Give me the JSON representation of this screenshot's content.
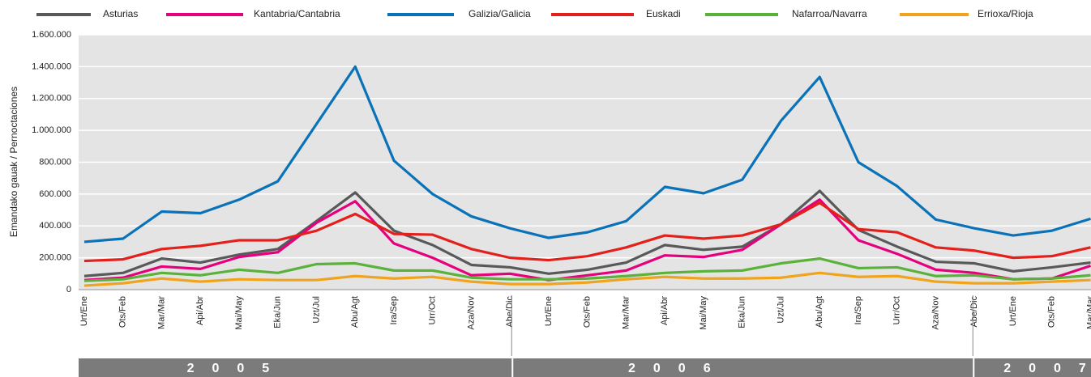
{
  "chart_data": {
    "type": "line",
    "y_label": "Emandako gauak / Pernoctaciones",
    "categories": [
      "Urt/Ene",
      "Ots/Feb",
      "Mar/Mar",
      "Api/Abr",
      "Mai/May",
      "Eka/Jun",
      "Uzt/Jul",
      "Abu/Agt",
      "Ira/Sep",
      "Urr/Oct",
      "Aza/Nov",
      "Abe/Dic",
      "Urt/Ene",
      "Ots/Feb",
      "Mar/Mar",
      "Api/Abr",
      "Mai/May",
      "Eka/Jun",
      "Uzt/Jul",
      "Abu/Agt",
      "Ira/Sep",
      "Urr/Oct",
      "Aza/Nov",
      "Abe/Dic",
      "Urt/Ene",
      "Ots/Feb",
      "Mar/Mar"
    ],
    "years": [
      "2005",
      "2006",
      "2007"
    ],
    "ylim": [
      0,
      1600000
    ],
    "yticks": [
      0,
      {
        "value": 200000,
        "label": "200.000"
      },
      {
        "value": 400000,
        "label": "400.000"
      },
      {
        "value": 600000,
        "label": "600.000"
      },
      {
        "value": 800000,
        "label": "800.000"
      },
      {
        "value": 1000000,
        "label": "1.000.000"
      },
      {
        "value": 1200000,
        "label": "1.200.000"
      },
      {
        "value": 1400000,
        "label": "1.400.000"
      },
      {
        "value": 1600000,
        "label": "1.600.000"
      }
    ],
    "grid": true,
    "series": [
      {
        "name": "Asturias",
        "color": "#58595b",
        "values": [
          85000,
          105000,
          195000,
          170000,
          220000,
          255000,
          430000,
          610000,
          370000,
          280000,
          155000,
          140000,
          100000,
          125000,
          170000,
          280000,
          250000,
          270000,
          410000,
          620000,
          375000,
          270000,
          175000,
          165000,
          115000,
          140000,
          170000
        ]
      },
      {
        "name": "Kantabria/Cantabria",
        "color": "#e6007e",
        "values": [
          60000,
          75000,
          145000,
          130000,
          205000,
          235000,
          420000,
          555000,
          290000,
          200000,
          90000,
          100000,
          60000,
          90000,
          120000,
          215000,
          205000,
          250000,
          410000,
          565000,
          310000,
          225000,
          125000,
          105000,
          65000,
          70000,
          150000
        ]
      },
      {
        "name": "Galizia/Galicia",
        "color": "#0a72b8",
        "values": [
          300000,
          320000,
          490000,
          480000,
          565000,
          680000,
          1040000,
          1400000,
          810000,
          600000,
          460000,
          385000,
          325000,
          360000,
          430000,
          645000,
          605000,
          690000,
          1060000,
          1335000,
          800000,
          650000,
          440000,
          385000,
          340000,
          370000,
          445000
        ]
      },
      {
        "name": "Euskadi",
        "color": "#e3201b",
        "values": [
          180000,
          190000,
          255000,
          275000,
          310000,
          310000,
          370000,
          475000,
          350000,
          345000,
          255000,
          200000,
          185000,
          210000,
          265000,
          340000,
          320000,
          340000,
          410000,
          545000,
          380000,
          360000,
          265000,
          245000,
          200000,
          210000,
          265000
        ]
      },
      {
        "name": "Nafarroa/Navarra",
        "color": "#5ab23a",
        "values": [
          55000,
          65000,
          105000,
          90000,
          125000,
          105000,
          160000,
          165000,
          120000,
          120000,
          75000,
          65000,
          65000,
          70000,
          85000,
          105000,
          115000,
          120000,
          165000,
          195000,
          135000,
          140000,
          85000,
          90000,
          65000,
          70000,
          90000
        ]
      },
      {
        "name": "Errioxa/Rioja",
        "color": "#f0a31c",
        "values": [
          25000,
          40000,
          70000,
          50000,
          65000,
          60000,
          60000,
          85000,
          70000,
          80000,
          50000,
          35000,
          35000,
          45000,
          65000,
          80000,
          70000,
          70000,
          75000,
          105000,
          80000,
          85000,
          50000,
          40000,
          40000,
          50000,
          60000
        ]
      }
    ]
  }
}
